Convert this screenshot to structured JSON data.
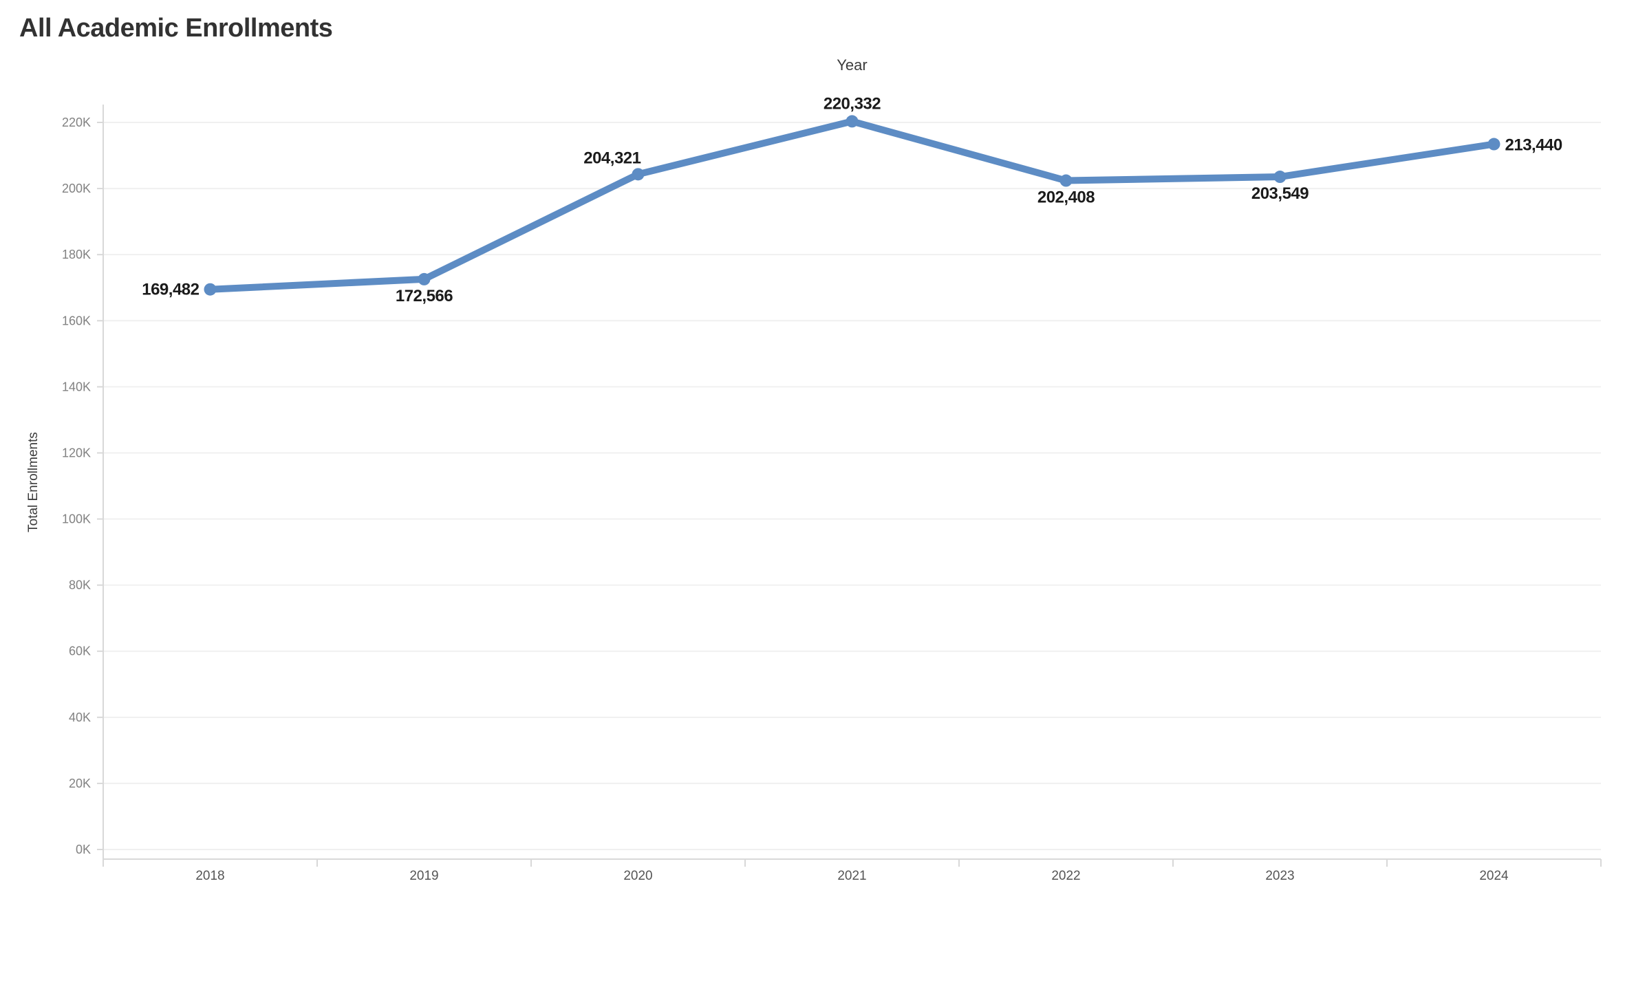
{
  "chart_data": {
    "type": "line",
    "title": "All Academic Enrollments",
    "xlabel": "Year",
    "ylabel": "Total Enrollments",
    "categories": [
      "2018",
      "2019",
      "2020",
      "2021",
      "2022",
      "2023",
      "2024"
    ],
    "series": [
      {
        "name": "Total Enrollments",
        "values": [
          169482,
          172566,
          204321,
          220332,
          202408,
          203549,
          213440
        ],
        "point_labels": [
          "169,482",
          "172,566",
          "204,321",
          "220,332",
          "202,408",
          "203,549",
          "213,440"
        ]
      }
    ],
    "ylim": [
      0,
      220000
    ],
    "ytick_step": 20000,
    "ytick_labels": [
      "0K",
      "20K",
      "40K",
      "60K",
      "80K",
      "100K",
      "120K",
      "140K",
      "160K",
      "180K",
      "200K",
      "220K"
    ],
    "grid": true,
    "legend": "none",
    "colors": {
      "line": "#5d8cc4",
      "marker": "#5d8cc4",
      "gridline": "#f0f0f0",
      "axis_line": "#d8d8d8",
      "ytick_text": "#818181",
      "xtick_text": "#555555",
      "data_label": "#1b1b1b",
      "title_text": "#323232"
    }
  }
}
